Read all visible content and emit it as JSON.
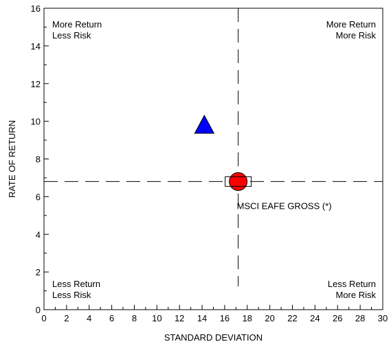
{
  "chart_data": {
    "type": "scatter",
    "title": "",
    "xlabel": "STANDARD DEVIATION",
    "ylabel": "RATE OF RETURN",
    "xlim": [
      0,
      30
    ],
    "ylim": [
      0,
      16
    ],
    "x_ticks": [
      "0",
      "2",
      "4",
      "6",
      "8",
      "10",
      "12",
      "14",
      "16",
      "18",
      "20",
      "22",
      "24",
      "26",
      "28",
      "30"
    ],
    "y_ticks": [
      "0",
      "2",
      "4",
      "6",
      "8",
      "10",
      "12",
      "14",
      "16"
    ],
    "grid": false,
    "crosshair": {
      "x": 17.2,
      "y": 6.8
    },
    "quadrant_labels": {
      "top_left": [
        "More Return",
        "Less Risk"
      ],
      "top_right": [
        "More Return",
        "More Risk"
      ],
      "bottom_left": [
        "Less Return",
        "Less Risk"
      ],
      "bottom_right": [
        "Less Return",
        "More Risk"
      ]
    },
    "points": [
      {
        "marker": "triangle",
        "color": "#0000ff",
        "x": 14.2,
        "y": 9.8
      },
      {
        "marker": "circle",
        "color": "#ff0000",
        "x": 17.2,
        "y": 6.8
      },
      {
        "marker": "square",
        "color": "#ffffff",
        "x": 17.2,
        "y": 6.8
      }
    ],
    "annotation": {
      "text": "MSCI EAFE GROSS (*)",
      "x": 17.2,
      "y": 6.8
    }
  }
}
